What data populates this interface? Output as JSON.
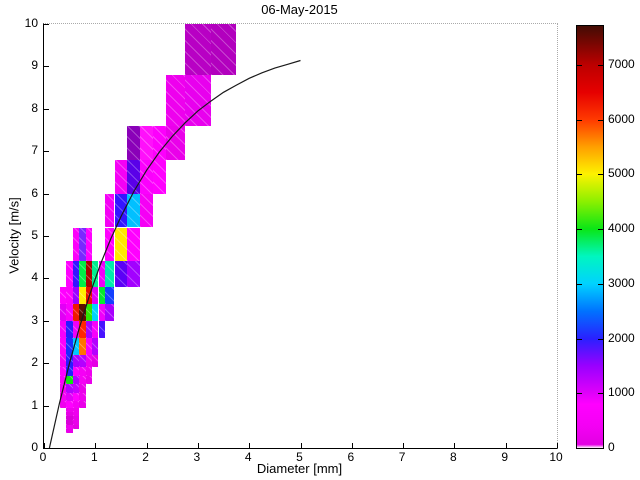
{
  "chart_data": {
    "type": "heatmap",
    "title": "06-May-2015",
    "xlabel": "Diameter [mm]",
    "ylabel": "Velocity [m/s]",
    "xlim": [
      0,
      10
    ],
    "ylim": [
      0,
      10
    ],
    "xticks": [
      0,
      1,
      2,
      3,
      4,
      5,
      6,
      7,
      8,
      9,
      10
    ],
    "yticks": [
      0,
      1,
      2,
      3,
      4,
      5,
      6,
      7,
      8,
      9,
      10
    ],
    "grid": false,
    "colorbar": {
      "min": 0,
      "max": 7710,
      "ticks": [
        0,
        1000,
        2000,
        3000,
        4000,
        5000,
        6000,
        7000
      ],
      "gradient_stops": [
        {
          "value": 0,
          "color": "#ffffff"
        },
        {
          "value": 60,
          "color": "#e200e2"
        },
        {
          "value": 400,
          "color": "#f400f4"
        },
        {
          "value": 800,
          "color": "#ff00ff"
        },
        {
          "value": 1000,
          "color": "#e000fa"
        },
        {
          "value": 1500,
          "color": "#9900ff"
        },
        {
          "value": 2000,
          "color": "#2a20ff"
        },
        {
          "value": 2500,
          "color": "#0072ff"
        },
        {
          "value": 3000,
          "color": "#00d2ff"
        },
        {
          "value": 3500,
          "color": "#00f6c0"
        },
        {
          "value": 4000,
          "color": "#0ae616"
        },
        {
          "value": 4500,
          "color": "#8cf000"
        },
        {
          "value": 5000,
          "color": "#fdf200"
        },
        {
          "value": 5500,
          "color": "#ffa000"
        },
        {
          "value": 6000,
          "color": "#ff3a00"
        },
        {
          "value": 6500,
          "color": "#e60000"
        },
        {
          "value": 7000,
          "color": "#bc0000"
        },
        {
          "value": 7710,
          "color": "#430c04"
        }
      ]
    },
    "cells_format": [
      "d_min",
      "d_max",
      "v_min",
      "v_max",
      "count",
      "color"
    ],
    "cells": [
      [
        0.312,
        0.437,
        0.95,
        1.1,
        300,
        "#ef00ef"
      ],
      [
        0.312,
        0.437,
        1.1,
        1.3,
        400,
        "#f500f5"
      ],
      [
        0.312,
        0.437,
        1.3,
        1.5,
        400,
        "#f500f5"
      ],
      [
        0.312,
        0.437,
        1.5,
        1.7,
        450,
        "#fa00fa"
      ],
      [
        0.312,
        0.437,
        1.7,
        1.9,
        500,
        "#ff00ff"
      ],
      [
        0.312,
        0.437,
        1.9,
        2.2,
        400,
        "#f500f5"
      ],
      [
        0.312,
        0.437,
        2.2,
        2.6,
        600,
        "#fd00fb"
      ],
      [
        0.312,
        0.437,
        2.6,
        3.0,
        700,
        "#f700fb"
      ],
      [
        0.312,
        0.437,
        3.0,
        3.4,
        900,
        "#e100f5"
      ],
      [
        0.312,
        0.437,
        3.4,
        3.8,
        500,
        "#ff00ff"
      ],
      [
        0.437,
        0.562,
        0.35,
        0.45,
        300,
        "#e800e8"
      ],
      [
        0.437,
        0.562,
        0.45,
        0.55,
        400,
        "#ef00ef"
      ],
      [
        0.437,
        0.562,
        0.55,
        0.65,
        500,
        "#d900d9"
      ],
      [
        0.437,
        0.562,
        0.65,
        0.75,
        500,
        "#d900d9"
      ],
      [
        0.437,
        0.562,
        0.75,
        0.85,
        450,
        "#e600e6"
      ],
      [
        0.437,
        0.562,
        0.85,
        0.95,
        450,
        "#ee00ee"
      ],
      [
        0.437,
        0.562,
        0.95,
        1.1,
        550,
        "#ff00ff"
      ],
      [
        0.437,
        0.562,
        1.1,
        1.3,
        900,
        "#e000f8"
      ],
      [
        0.437,
        0.562,
        1.3,
        1.5,
        1100,
        "#b400ff"
      ],
      [
        0.437,
        0.562,
        1.5,
        1.7,
        4000,
        "#12e412"
      ],
      [
        0.437,
        0.562,
        1.7,
        1.9,
        2000,
        "#2222ff"
      ],
      [
        0.437,
        0.562,
        1.9,
        2.2,
        1900,
        "#2a1cff"
      ],
      [
        0.437,
        0.562,
        2.2,
        2.6,
        2100,
        "#1c2cff"
      ],
      [
        0.437,
        0.562,
        2.6,
        3.0,
        1900,
        "#2a1cff"
      ],
      [
        0.437,
        0.562,
        3.0,
        3.4,
        700,
        "#f700fb"
      ],
      [
        0.437,
        0.562,
        3.4,
        3.8,
        600,
        "#fd00fb"
      ],
      [
        0.437,
        0.562,
        3.8,
        4.4,
        500,
        "#ff00ff"
      ],
      [
        0.562,
        0.687,
        0.45,
        0.55,
        250,
        "#e400e4"
      ],
      [
        0.562,
        0.687,
        0.55,
        0.65,
        300,
        "#e900e9"
      ],
      [
        0.562,
        0.687,
        0.65,
        0.75,
        300,
        "#e900e9"
      ],
      [
        0.562,
        0.687,
        0.75,
        0.85,
        350,
        "#ef00ef"
      ],
      [
        0.562,
        0.687,
        0.85,
        0.95,
        350,
        "#ef00ef"
      ],
      [
        0.562,
        0.687,
        0.95,
        1.1,
        400,
        "#f500f5"
      ],
      [
        0.562,
        0.687,
        1.1,
        1.3,
        550,
        "#ff00ff"
      ],
      [
        0.562,
        0.687,
        1.3,
        1.5,
        1000,
        "#c800ff"
      ],
      [
        0.562,
        0.687,
        1.5,
        1.7,
        1100,
        "#b400ff"
      ],
      [
        0.562,
        0.687,
        1.7,
        1.9,
        650,
        "#fb00fd"
      ],
      [
        0.562,
        0.687,
        1.9,
        2.2,
        1200,
        "#a800ff"
      ],
      [
        0.562,
        0.687,
        2.2,
        2.6,
        2900,
        "#00c8ff"
      ],
      [
        0.562,
        0.687,
        2.6,
        3.0,
        800,
        "#ef00f9"
      ],
      [
        0.562,
        0.687,
        3.0,
        3.4,
        6200,
        "#f01800"
      ],
      [
        0.562,
        0.687,
        3.4,
        3.8,
        1300,
        "#9c00ff"
      ],
      [
        0.562,
        0.687,
        3.8,
        4.4,
        1800,
        "#3416ff"
      ],
      [
        0.562,
        0.687,
        4.4,
        5.2,
        450,
        "#fa00fa"
      ],
      [
        0.687,
        0.812,
        0.95,
        1.1,
        300,
        "#e900e9"
      ],
      [
        0.687,
        0.812,
        1.1,
        1.3,
        350,
        "#ef00ef"
      ],
      [
        0.687,
        0.812,
        1.3,
        1.5,
        300,
        "#ea00ea"
      ],
      [
        0.687,
        0.812,
        1.5,
        1.7,
        400,
        "#f500f5"
      ],
      [
        0.687,
        0.812,
        1.7,
        1.9,
        400,
        "#f500f5"
      ],
      [
        0.687,
        0.812,
        1.9,
        2.2,
        1100,
        "#b400ff"
      ],
      [
        0.687,
        0.812,
        2.2,
        2.6,
        5500,
        "#ff7300"
      ],
      [
        0.687,
        0.812,
        2.6,
        3.0,
        6000,
        "#ff2600"
      ],
      [
        0.687,
        0.812,
        3.0,
        3.4,
        7500,
        "#5c1000"
      ],
      [
        0.687,
        0.812,
        3.4,
        3.8,
        5000,
        "#ffee00"
      ],
      [
        0.687,
        0.812,
        3.8,
        4.4,
        3800,
        "#00ec46"
      ],
      [
        0.687,
        0.812,
        4.4,
        5.2,
        1300,
        "#7a28ff"
      ],
      [
        0.812,
        0.937,
        1.5,
        1.7,
        300,
        "#ea00ea"
      ],
      [
        0.812,
        0.937,
        1.7,
        1.9,
        350,
        "#ef00ef"
      ],
      [
        0.812,
        0.937,
        1.9,
        2.2,
        350,
        "#ef00ef"
      ],
      [
        0.812,
        0.937,
        2.2,
        2.6,
        700,
        "#f700fb"
      ],
      [
        0.812,
        0.937,
        2.6,
        3.0,
        1200,
        "#a800ff"
      ],
      [
        0.812,
        0.937,
        3.0,
        3.4,
        4200,
        "#2ce800"
      ],
      [
        0.812,
        0.937,
        3.4,
        3.8,
        6400,
        "#e60c00"
      ],
      [
        0.812,
        0.937,
        3.8,
        4.4,
        6900,
        "#a80000"
      ],
      [
        0.812,
        0.937,
        4.4,
        5.2,
        500,
        "#ff00ff"
      ],
      [
        0.937,
        1.062,
        1.9,
        2.2,
        250,
        "#e500e5"
      ],
      [
        0.937,
        1.062,
        2.2,
        2.6,
        1100,
        "#b400ff"
      ],
      [
        0.937,
        1.062,
        2.6,
        3.0,
        700,
        "#f700fb"
      ],
      [
        0.937,
        1.062,
        3.0,
        3.4,
        3100,
        "#00d4fc"
      ],
      [
        0.937,
        1.062,
        3.4,
        3.8,
        900,
        "#e100f5"
      ],
      [
        0.937,
        1.062,
        3.8,
        4.4,
        3500,
        "#00ee8e"
      ],
      [
        1.062,
        1.187,
        2.6,
        3.0,
        1700,
        "#4812ff"
      ],
      [
        1.062,
        1.187,
        3.0,
        3.4,
        800,
        "#ef00f9"
      ],
      [
        1.062,
        1.187,
        3.4,
        3.8,
        3900,
        "#06ea2e"
      ],
      [
        1.062,
        1.187,
        3.8,
        4.4,
        800,
        "#ef00f9"
      ],
      [
        1.187,
        1.375,
        3.0,
        3.4,
        1200,
        "#a800ff"
      ],
      [
        1.187,
        1.375,
        3.4,
        3.8,
        2200,
        "#1440ff"
      ],
      [
        1.187,
        1.375,
        3.8,
        4.4,
        3400,
        "#00ecaa"
      ],
      [
        1.187,
        1.375,
        4.4,
        5.2,
        500,
        "#ff00ff"
      ],
      [
        1.187,
        1.375,
        5.2,
        6.0,
        400,
        "#f500f5"
      ],
      [
        1.375,
        1.625,
        3.8,
        4.4,
        1600,
        "#5c00f6"
      ],
      [
        1.375,
        1.625,
        4.4,
        5.2,
        5200,
        "#ffe800"
      ],
      [
        1.375,
        1.625,
        5.2,
        6.0,
        1800,
        "#3416ff"
      ],
      [
        1.375,
        1.625,
        6.0,
        6.8,
        400,
        "#f500f5"
      ],
      [
        1.625,
        1.875,
        3.8,
        4.4,
        1250,
        "#a200ff"
      ],
      [
        1.625,
        1.875,
        4.4,
        5.2,
        500,
        "#ff00ff"
      ],
      [
        1.625,
        1.875,
        5.2,
        6.0,
        2800,
        "#00c0ff"
      ],
      [
        1.625,
        1.875,
        6.0,
        6.8,
        1700,
        "#5a00e8"
      ],
      [
        1.625,
        1.875,
        6.8,
        7.6,
        950,
        "#8a00b8"
      ],
      [
        1.875,
        2.125,
        5.2,
        6.0,
        400,
        "#f500f5"
      ],
      [
        1.875,
        2.125,
        6.0,
        6.8,
        700,
        "#fb00fd"
      ],
      [
        1.875,
        2.125,
        6.8,
        7.6,
        650,
        "#ff10fb"
      ],
      [
        2.125,
        2.375,
        6.0,
        6.8,
        500,
        "#ff00ff"
      ],
      [
        2.125,
        2.375,
        6.8,
        7.6,
        600,
        "#fc00fc"
      ],
      [
        2.375,
        2.75,
        6.8,
        7.6,
        550,
        "#ea00ea"
      ],
      [
        2.375,
        2.75,
        7.6,
        8.8,
        600,
        "#ee00ee"
      ],
      [
        2.75,
        3.25,
        7.6,
        8.8,
        600,
        "#e800ee"
      ],
      [
        2.75,
        3.25,
        8.8,
        10.0,
        900,
        "#b800c4"
      ],
      [
        3.25,
        3.75,
        8.8,
        10.0,
        880,
        "#b200be"
      ]
    ],
    "curve": {
      "name": "terminal-velocity-curve",
      "color": "#1a1a1a",
      "points": [
        [
          0.105,
          0.0
        ],
        [
          0.3,
          1.05
        ],
        [
          0.5,
          2.02
        ],
        [
          0.7,
          2.88
        ],
        [
          0.9,
          3.65
        ],
        [
          1.1,
          4.33
        ],
        [
          1.3,
          4.93
        ],
        [
          1.5,
          5.46
        ],
        [
          1.75,
          6.05
        ],
        [
          2.0,
          6.55
        ],
        [
          2.25,
          6.98
        ],
        [
          2.5,
          7.35
        ],
        [
          2.75,
          7.67
        ],
        [
          3.0,
          7.95
        ],
        [
          3.25,
          8.18
        ],
        [
          3.5,
          8.39
        ],
        [
          3.75,
          8.56
        ],
        [
          4.0,
          8.72
        ],
        [
          4.25,
          8.85
        ],
        [
          4.5,
          8.96
        ],
        [
          4.75,
          9.05
        ],
        [
          5.0,
          9.14
        ]
      ]
    }
  }
}
